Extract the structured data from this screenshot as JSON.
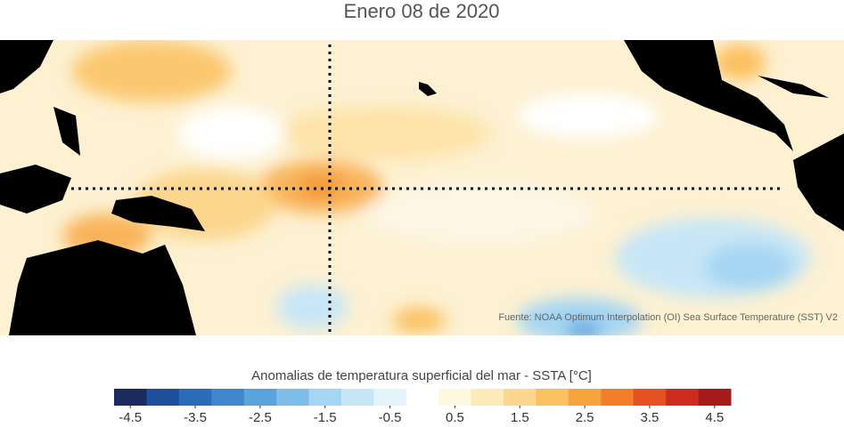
{
  "title": "Enero 08 de 2020",
  "source": "Fuente: NOAA Optimum Interpolation (OI) Sea Surface Temperature (SST) V2",
  "colorbar": {
    "label": "Anomalias de temperatura superficial del mar - SSTA  [°C]",
    "lim": [
      -4.75,
      4.75
    ],
    "ticks": [
      -4.5,
      -3.5,
      -2.5,
      -1.5,
      -0.5,
      0.5,
      1.5,
      2.5,
      3.5,
      4.5
    ],
    "colors": [
      "#1b2b5f",
      "#1f4f9b",
      "#2a6cb9",
      "#3e87cd",
      "#5aa3dd",
      "#7ebde9",
      "#a4d5f3",
      "#c7e6f7",
      "#e3f4fb",
      "#ffffff",
      "#fff8e1",
      "#fdeab9",
      "#fcd78d",
      "#fbc05f",
      "#f8a33b",
      "#f27e29",
      "#e35220",
      "#cd2b1d",
      "#a51b1b"
    ]
  }
}
